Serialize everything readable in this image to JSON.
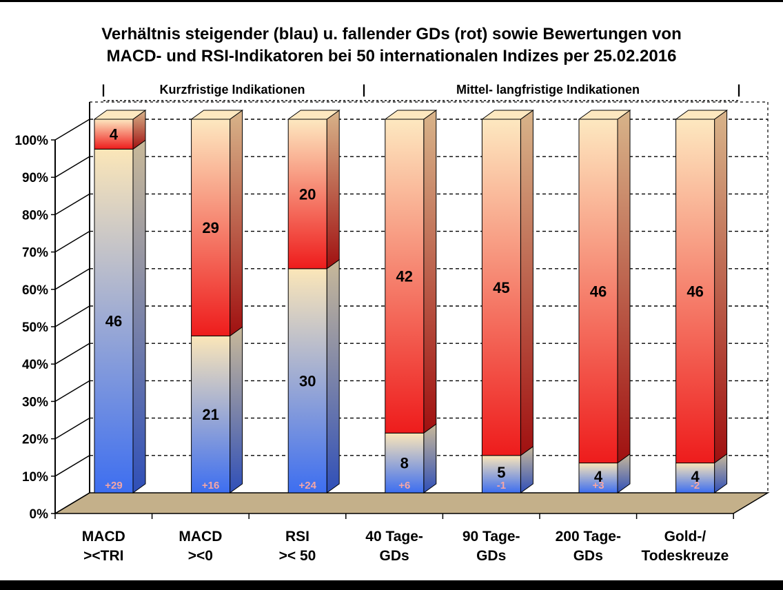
{
  "chart_data": {
    "type": "bar",
    "stacked": true,
    "title": "Verhältnis steigender (blau) u. fallender GDs (rot) sowie Bewertungen von",
    "subtitle": "MACD- und RSI-Indikatoren bei 50 internationalen Indizes per 25.02.2016",
    "section_labels": [
      "Kurzfristige Indikationen",
      "Mittel- langfristige Indikationen"
    ],
    "section_separators": [
      "|",
      "|",
      "|"
    ],
    "categories": [
      [
        "MACD",
        "><TRI"
      ],
      [
        "MACD",
        "><0"
      ],
      [
        "RSI",
        ">< 50"
      ],
      [
        "40 Tage-",
        "GDs"
      ],
      [
        "90 Tage-",
        "GDs"
      ],
      [
        "200 Tage-",
        "GDs"
      ],
      [
        "Gold-/",
        "Todeskreuze"
      ]
    ],
    "series": [
      {
        "name": "steigend (blau)",
        "values": [
          46,
          21,
          30,
          8,
          5,
          4,
          4
        ]
      },
      {
        "name": "fallend (rot)",
        "values": [
          4,
          29,
          20,
          42,
          45,
          46,
          46
        ]
      }
    ],
    "differences": [
      "+29",
      "+16",
      "+24",
      "+6",
      "-1",
      "+3",
      "-2"
    ],
    "ylim": [
      0,
      100
    ],
    "yticks": [
      "0%",
      "10%",
      "20%",
      "30%",
      "40%",
      "50%",
      "60%",
      "70%",
      "80%",
      "90%",
      "100%"
    ],
    "grid": true,
    "colors": {
      "rising_bottom": "#3d6ef0",
      "rising_top": "#fbe6b8",
      "falling_bottom": "#ee1c1c",
      "falling_top": "#fde8c0",
      "floor": "#c4b08a",
      "side_shade": "#9f8d6a"
    }
  }
}
